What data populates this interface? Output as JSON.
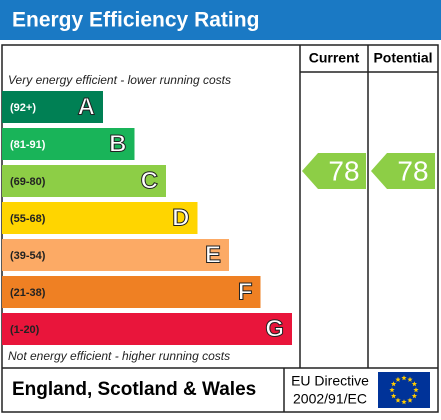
{
  "title": "Energy Efficiency Rating",
  "columns": [
    "Current",
    "Potential"
  ],
  "top_note": "Very energy efficient - lower running costs",
  "bottom_note": "Not energy efficient - higher running costs",
  "bands": [
    {
      "range": "(92+)",
      "letter": "A",
      "color": "#008054"
    },
    {
      "range": "(81-91)",
      "letter": "B",
      "color": "#19b459"
    },
    {
      "range": "(69-80)",
      "letter": "C",
      "color": "#8dce46"
    },
    {
      "range": "(55-68)",
      "letter": "D",
      "color": "#ffd500"
    },
    {
      "range": "(39-54)",
      "letter": "E",
      "color": "#fcaa65"
    },
    {
      "range": "(21-38)",
      "letter": "F",
      "color": "#ef8023"
    },
    {
      "range": "(1-20)",
      "letter": "G",
      "color": "#e9153b"
    }
  ],
  "current": 78,
  "potential": 78,
  "footer": {
    "region": "England, Scotland & Wales",
    "directive_line1": "EU Directive",
    "directive_line2": "2002/91/EC"
  }
}
